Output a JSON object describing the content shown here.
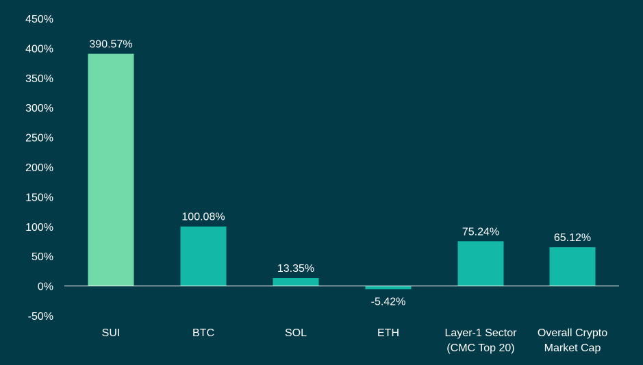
{
  "chart_data": {
    "type": "bar",
    "title": "",
    "xlabel": "",
    "ylabel": "",
    "ylim": [
      -50,
      450
    ],
    "yticks": [
      -50,
      0,
      50,
      100,
      150,
      200,
      250,
      300,
      350,
      400,
      450
    ],
    "ytick_labels": [
      "-50%",
      "0%",
      "50%",
      "100%",
      "150%",
      "200%",
      "250%",
      "300%",
      "350%",
      "400%",
      "450%"
    ],
    "grid": false,
    "legend": "none",
    "categories": [
      [
        "SUI"
      ],
      [
        "BTC"
      ],
      [
        "SOL"
      ],
      [
        "ETH"
      ],
      [
        "Layer-1 Sector",
        "(CMC Top 20)"
      ],
      [
        "Overall Crypto",
        "Market Cap"
      ]
    ],
    "values": [
      390.57,
      100.08,
      13.35,
      -5.42,
      75.24,
      65.12
    ],
    "value_labels": [
      "390.57%",
      "100.08%",
      "13.35%",
      "-5.42%",
      "75.24%",
      "65.12%"
    ],
    "colors": {
      "background": "#033a48",
      "highlight_bar": "#72d9a9",
      "bar": "#14b8a6",
      "axis_line": "#ffffff",
      "text": "#ffffff"
    },
    "highlight_index": 0
  }
}
